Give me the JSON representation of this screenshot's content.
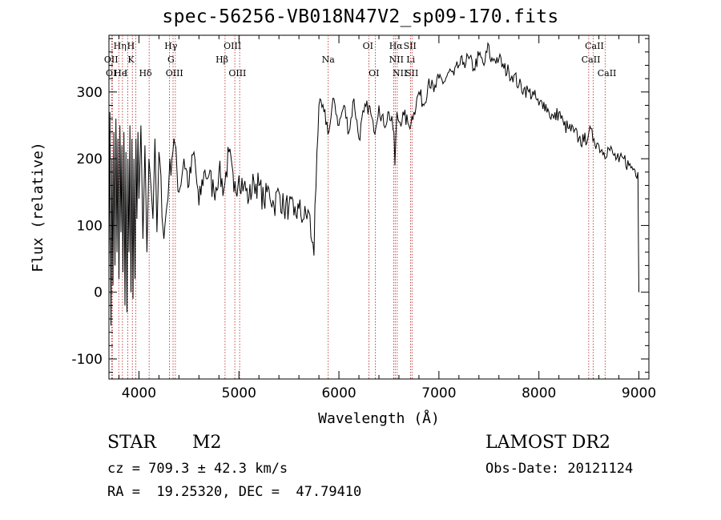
{
  "chart_data": {
    "type": "line",
    "title": "spec-56256-VB018N47V2_sp09-170.fits",
    "xlabel": "Wavelength (Å)",
    "ylabel": "Flux (relative)",
    "xlim": [
      3700,
      9100
    ],
    "ylim": [
      -130,
      385
    ],
    "xticks": [
      4000,
      5000,
      6000,
      7000,
      8000,
      9000
    ],
    "yticks": [
      -100,
      0,
      100,
      200,
      300
    ],
    "series": [
      {
        "x": [
          3700,
          3710,
          3720,
          3730,
          3740,
          3750,
          3760,
          3770,
          3780,
          3790,
          3800,
          3810,
          3820,
          3830,
          3840,
          3850,
          3860,
          3870,
          3880,
          3890,
          3900,
          3910,
          3920,
          3930,
          3940,
          3950,
          3960,
          3970,
          3980,
          3990,
          4000,
          4020,
          4040,
          4060,
          4080,
          4100,
          4120,
          4140,
          4160,
          4180,
          4200,
          4250,
          4300,
          4350,
          4400,
          4450,
          4500,
          4550,
          4600,
          4650,
          4700,
          4750,
          4800,
          4850,
          4900,
          4950,
          5000,
          5050,
          5100,
          5150,
          5200,
          5250,
          5300,
          5350,
          5400,
          5450,
          5500,
          5550,
          5600,
          5650,
          5700,
          5730,
          5750,
          5760,
          5780,
          5800,
          5850,
          5900,
          5950,
          6000,
          6050,
          6100,
          6150,
          6200,
          6250,
          6300,
          6350,
          6400,
          6450,
          6500,
          6550,
          6560,
          6580,
          6600,
          6650,
          6700,
          6750,
          6800,
          6850,
          6900,
          6950,
          7000,
          7050,
          7100,
          7150,
          7200,
          7250,
          7300,
          7350,
          7400,
          7450,
          7500,
          7520,
          7550,
          7600,
          7650,
          7700,
          7750,
          7800,
          7850,
          7900,
          7950,
          8000,
          8050,
          8100,
          8150,
          8200,
          8250,
          8300,
          8350,
          8400,
          8450,
          8500,
          8550,
          8600,
          8650,
          8700,
          8750,
          8800,
          8850,
          8900,
          8950,
          8990,
          9000
        ],
        "y": [
          30,
          270,
          -50,
          200,
          10,
          240,
          40,
          260,
          60,
          230,
          20,
          250,
          90,
          220,
          30,
          240,
          -20,
          210,
          -30,
          200,
          60,
          250,
          0,
          230,
          -10,
          200,
          20,
          230,
          110,
          240,
          140,
          250,
          80,
          220,
          60,
          200,
          160,
          110,
          230,
          90,
          210,
          80,
          170,
          230,
          150,
          200,
          160,
          210,
          130,
          180,
          175,
          150,
          180,
          155,
          210,
          150,
          175,
          160,
          140,
          165,
          160,
          135,
          155,
          130,
          150,
          125,
          130,
          115,
          125,
          110,
          120,
          75,
          55,
          130,
          210,
          280,
          270,
          240,
          290,
          250,
          280,
          240,
          290,
          230,
          270,
          280,
          240,
          280,
          250,
          270,
          240,
          190,
          270,
          255,
          265,
          250,
          270,
          300,
          280,
          320,
          300,
          320,
          315,
          330,
          325,
          340,
          345,
          350,
          335,
          355,
          340,
          370,
          345,
          350,
          350,
          335,
          330,
          325,
          310,
          305,
          300,
          295,
          280,
          285,
          270,
          260,
          270,
          250,
          245,
          240,
          230,
          225,
          240,
          230,
          220,
          210,
          215,
          205,
          195,
          200,
          190,
          185,
          180,
          0
        ]
      }
    ],
    "vlines": [
      3727,
      3734,
      3798,
      3835,
      3889,
      3934,
      3969,
      4102,
      4305,
      4341,
      4364,
      4861,
      4959,
      5007,
      5893,
      6300,
      6364,
      6548,
      6563,
      6583,
      6716,
      6731,
      8498,
      8542,
      8662
    ],
    "line_labels": [
      {
        "text": "OII",
        "x": 3722,
        "row": 2
      },
      {
        "text": "OI",
        "x": 3722,
        "row": 3
      },
      {
        "text": "Hη",
        "x": 3810,
        "row": 1
      },
      {
        "text": "He",
        "x": 3815,
        "row": 3
      },
      {
        "text": "I",
        "x": 3870,
        "row": 3
      },
      {
        "text": "H",
        "x": 3920,
        "row": 1
      },
      {
        "text": "K",
        "x": 3920,
        "row": 2
      },
      {
        "text": "Hδ",
        "x": 4065,
        "row": 3
      },
      {
        "text": "Hγ",
        "x": 4320,
        "row": 1
      },
      {
        "text": "G",
        "x": 4320,
        "row": 2
      },
      {
        "text": "OIII",
        "x": 4355,
        "row": 3
      },
      {
        "text": "OIII",
        "x": 4935,
        "row": 1
      },
      {
        "text": "Hβ",
        "x": 4830,
        "row": 2
      },
      {
        "text": "OIII",
        "x": 4985,
        "row": 3
      },
      {
        "text": "Na",
        "x": 5893,
        "row": 2
      },
      {
        "text": "OI",
        "x": 6290,
        "row": 1
      },
      {
        "text": "OI",
        "x": 6350,
        "row": 3
      },
      {
        "text": "Hα",
        "x": 6570,
        "row": 1
      },
      {
        "text": "SII",
        "x": 6710,
        "row": 1
      },
      {
        "text": "NII",
        "x": 6575,
        "row": 2
      },
      {
        "text": "Li",
        "x": 6718,
        "row": 2
      },
      {
        "text": "NII",
        "x": 6610,
        "row": 3
      },
      {
        "text": "SII",
        "x": 6730,
        "row": 3
      },
      {
        "text": "CaII",
        "x": 8555,
        "row": 1
      },
      {
        "text": "CaII",
        "x": 8520,
        "row": 2
      },
      {
        "text": "CaII",
        "x": 8680,
        "row": 3
      }
    ]
  },
  "info": {
    "object_class": "STAR",
    "subclass": "M2",
    "survey": "LAMOST DR2",
    "cz": "cz = 709.3 ± 42.3 km/s",
    "obs_date": "Obs-Date: 20121124",
    "coords": "RA =  19.25320, DEC =  47.79410"
  }
}
